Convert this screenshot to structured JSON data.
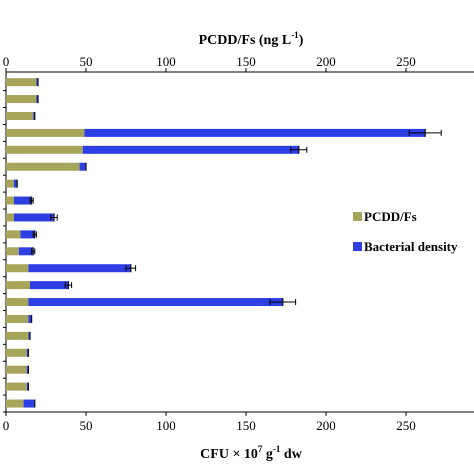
{
  "chart_data": {
    "type": "bar",
    "orientation": "horizontal",
    "stacked": true,
    "top_axis": {
      "label": "PCDD/Fs (ng L",
      "label_sup": "-1",
      "label_end": ")",
      "ticks": [
        "0",
        "50",
        "100",
        "150",
        "200",
        "250"
      ],
      "range": [
        0,
        250
      ]
    },
    "bottom_axis": {
      "label_pre": "CFU × 10",
      "label_sup1": "7",
      "label_mid": " g",
      "label_sup2": "-1",
      "label_end": " dw",
      "ticks": [
        "0",
        "50",
        "100",
        "150",
        "200",
        "250"
      ],
      "range": [
        0,
        250
      ]
    },
    "series": [
      {
        "name": "PCDD/Fs",
        "color": "#a6a55a",
        "values": [
          19,
          19,
          17,
          49,
          48,
          46,
          5,
          5,
          5,
          9,
          8,
          14,
          15,
          14,
          14,
          14,
          13,
          13,
          13,
          11
        ]
      },
      {
        "name": "Bacterial density",
        "color": "#2d3ee3",
        "values": [
          1,
          1,
          1,
          213,
          135,
          4,
          2,
          11,
          25,
          9,
          9,
          64,
          24,
          159,
          2,
          1,
          1,
          1,
          1,
          7
        ],
        "error": [
          0,
          0,
          0,
          10,
          5,
          0,
          0,
          1,
          2,
          1,
          1,
          3,
          2,
          8,
          0,
          0,
          0,
          0,
          0,
          0
        ]
      }
    ],
    "legend": {
      "position": "right",
      "items": [
        "PCDD/Fs",
        "Bacterial density"
      ]
    },
    "grid": false
  }
}
